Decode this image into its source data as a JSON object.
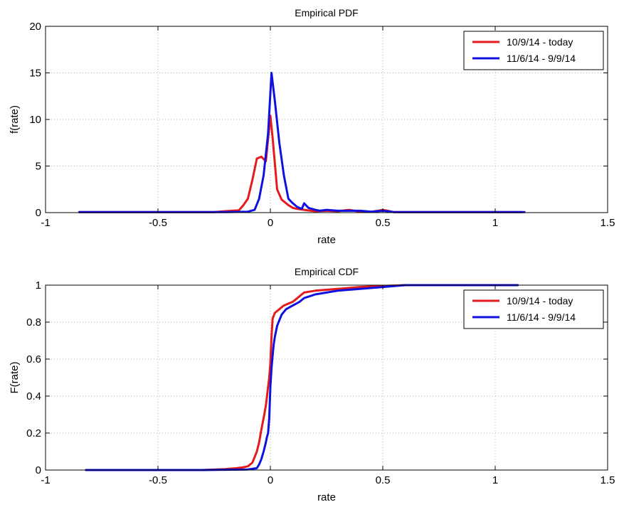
{
  "chart_data": [
    {
      "type": "line",
      "title": "Empirical PDF",
      "xlabel": "rate",
      "ylabel": "f(rate)",
      "xlim": [
        -1,
        1.5
      ],
      "ylim": [
        0,
        20
      ],
      "xticks": [
        -1,
        -0.5,
        0,
        0.5,
        1,
        1.5
      ],
      "xtick_labels": [
        "-1",
        "-0.5",
        "0",
        "0.5",
        "1",
        "1.5"
      ],
      "yticks": [
        0,
        5,
        10,
        15,
        20
      ],
      "ytick_labels": [
        "0",
        "5",
        "10",
        "15",
        "20"
      ],
      "grid": true,
      "legend_position": "top-right",
      "series": [
        {
          "name": "10/9/14 - today",
          "color": "#e41a1c",
          "x": [
            -0.85,
            -0.6,
            -0.4,
            -0.25,
            -0.2,
            -0.17,
            -0.14,
            -0.12,
            -0.1,
            -0.08,
            -0.06,
            -0.04,
            -0.02,
            0,
            0.01,
            0.03,
            0.05,
            0.08,
            0.1,
            0.12,
            0.15,
            0.18,
            0.2,
            0.25,
            0.3,
            0.35,
            0.4,
            0.45,
            0.48,
            0.5,
            0.52,
            0.55,
            0.6,
            0.8,
            1.0,
            1.12
          ],
          "y": [
            0.05,
            0.05,
            0.05,
            0.05,
            0.15,
            0.2,
            0.25,
            0.8,
            1.5,
            3.5,
            5.8,
            6.0,
            5.5,
            10.4,
            8.0,
            2.5,
            1.4,
            0.8,
            0.5,
            0.4,
            0.3,
            0.2,
            0.15,
            0.2,
            0.15,
            0.3,
            0.1,
            0.1,
            0.2,
            0.3,
            0.2,
            0.05,
            0.05,
            0.05,
            0.05,
            0.05
          ]
        },
        {
          "name": "11/6/14 - 9/9/14",
          "color": "#1010e0",
          "x": [
            -0.85,
            -0.6,
            -0.4,
            -0.2,
            -0.1,
            -0.07,
            -0.05,
            -0.03,
            -0.01,
            0.005,
            0.02,
            0.04,
            0.06,
            0.08,
            0.1,
            0.12,
            0.14,
            0.15,
            0.17,
            0.2,
            0.22,
            0.25,
            0.3,
            0.35,
            0.4,
            0.45,
            0.5,
            0.52,
            0.55,
            0.6,
            0.8,
            1.0,
            1.13
          ],
          "y": [
            0.05,
            0.05,
            0.05,
            0.05,
            0.1,
            0.3,
            1.5,
            4.0,
            8.5,
            15.0,
            12.0,
            7.5,
            4.0,
            1.5,
            1.0,
            0.6,
            0.4,
            1.0,
            0.5,
            0.3,
            0.2,
            0.3,
            0.2,
            0.2,
            0.2,
            0.1,
            0.2,
            0.15,
            0.05,
            0.05,
            0.05,
            0.05,
            0.05
          ]
        }
      ]
    },
    {
      "type": "line",
      "title": "Empirical CDF",
      "xlabel": "rate",
      "ylabel": "F(rate)",
      "xlim": [
        -1,
        1.5
      ],
      "ylim": [
        0,
        1
      ],
      "xticks": [
        -1,
        -0.5,
        0,
        0.5,
        1,
        1.5
      ],
      "xtick_labels": [
        "-1",
        "-0.5",
        "0",
        "0.5",
        "1",
        "1.5"
      ],
      "yticks": [
        0,
        0.2,
        0.4,
        0.6,
        0.8,
        1
      ],
      "ytick_labels": [
        "0",
        "0.2",
        "0.4",
        "0.6",
        "0.8",
        "1"
      ],
      "grid": true,
      "legend_position": "top-right",
      "series": [
        {
          "name": "10/9/14 - today",
          "color": "#e41a1c",
          "x": [
            -0.82,
            -0.3,
            -0.2,
            -0.15,
            -0.12,
            -0.1,
            -0.08,
            -0.07,
            -0.06,
            -0.05,
            -0.04,
            -0.03,
            -0.02,
            -0.015,
            -0.01,
            -0.005,
            0,
            0.005,
            0.01,
            0.02,
            0.04,
            0.06,
            0.08,
            0.1,
            0.12,
            0.15,
            0.2,
            0.25,
            0.3,
            0.4,
            0.5,
            0.6,
            0.8,
            1.0,
            1.1
          ],
          "y": [
            0.0,
            0.0,
            0.005,
            0.01,
            0.015,
            0.02,
            0.04,
            0.07,
            0.1,
            0.15,
            0.22,
            0.28,
            0.35,
            0.4,
            0.45,
            0.5,
            0.58,
            0.72,
            0.82,
            0.85,
            0.87,
            0.89,
            0.9,
            0.91,
            0.93,
            0.96,
            0.97,
            0.975,
            0.98,
            0.99,
            0.995,
            1.0,
            1.0,
            1.0,
            1.0
          ]
        },
        {
          "name": "11/6/14 - 9/9/14",
          "color": "#1010e0",
          "x": [
            -0.82,
            -0.3,
            -0.1,
            -0.06,
            -0.05,
            -0.04,
            -0.03,
            -0.02,
            -0.015,
            -0.01,
            -0.005,
            0,
            0.005,
            0.01,
            0.015,
            0.02,
            0.03,
            0.05,
            0.07,
            0.1,
            0.13,
            0.15,
            0.2,
            0.25,
            0.3,
            0.4,
            0.5,
            0.6,
            0.8,
            1.0,
            1.1
          ],
          "y": [
            0.0,
            0.0,
            0.003,
            0.01,
            0.03,
            0.06,
            0.1,
            0.15,
            0.18,
            0.2,
            0.28,
            0.45,
            0.55,
            0.62,
            0.68,
            0.72,
            0.78,
            0.84,
            0.87,
            0.89,
            0.91,
            0.93,
            0.95,
            0.96,
            0.97,
            0.98,
            0.99,
            1.0,
            1.0,
            1.0,
            1.0
          ]
        }
      ]
    }
  ]
}
